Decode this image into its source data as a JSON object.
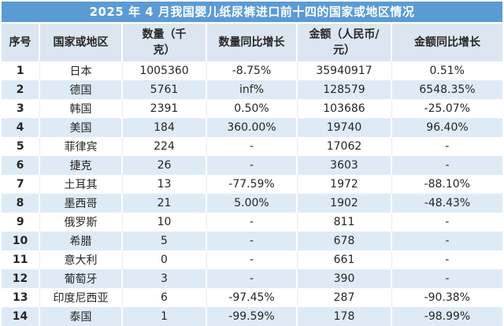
{
  "colors": {
    "title_bg": "#5B9BD5",
    "title_text": "#FFFFFF",
    "header_bg": "#DCE6F1",
    "row_bg": "#FFFFFF",
    "row_alt_bg": "#DEEBF7",
    "text": "#262626"
  },
  "chart_data": {
    "type": "table",
    "title": "2025 年 4 月我国婴儿纸尿裤进口前十四的国家或地区情况",
    "columns": [
      "序号",
      "国家或地区",
      "数量（千克）",
      "数量同比增长",
      "金额（人民币/元）",
      "金额同比增长"
    ],
    "rows": [
      [
        "1",
        "日本",
        "1005360",
        "-8.75%",
        "35940917",
        "0.51%"
      ],
      [
        "2",
        "德国",
        "5761",
        "inf%",
        "128579",
        "6548.35%"
      ],
      [
        "3",
        "韩国",
        "2391",
        "0.50%",
        "103686",
        "-25.07%"
      ],
      [
        "4",
        "美国",
        "184",
        "360.00%",
        "19740",
        "96.40%"
      ],
      [
        "5",
        "菲律宾",
        "224",
        "-",
        "17062",
        "-"
      ],
      [
        "6",
        "捷克",
        "26",
        "-",
        "3603",
        "-"
      ],
      [
        "7",
        "土耳其",
        "13",
        "-77.59%",
        "1972",
        "-88.10%"
      ],
      [
        "8",
        "墨西哥",
        "21",
        "5.00%",
        "1902",
        "-48.43%"
      ],
      [
        "9",
        "俄罗斯",
        "10",
        "-",
        "811",
        "-"
      ],
      [
        "10",
        "希腊",
        "5",
        "-",
        "678",
        "-"
      ],
      [
        "11",
        "意大利",
        "0",
        "-",
        "661",
        "-"
      ],
      [
        "12",
        "葡萄牙",
        "3",
        "-",
        "390",
        "-"
      ],
      [
        "13",
        "印度尼西亚",
        "6",
        "-97.45%",
        "287",
        "-90.38%"
      ],
      [
        "14",
        "泰国",
        "1",
        "-99.59%",
        "178",
        "-98.99%"
      ]
    ]
  }
}
